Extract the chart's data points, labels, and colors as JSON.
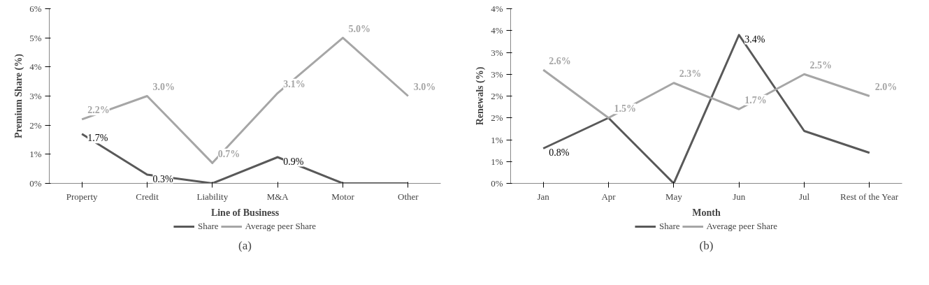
{
  "chart_data": [
    {
      "type": "line",
      "xlabel": "Line of Business",
      "ylabel": "Premium Share (%)",
      "categories": [
        "Property",
        "Credit",
        "Liability",
        "M&A",
        "Motor",
        "Other"
      ],
      "ylim": [
        0,
        6
      ],
      "yticks": [
        {
          "value": 0,
          "label": "0%"
        },
        {
          "value": 1,
          "label": "1%"
        },
        {
          "value": 2,
          "label": "2%"
        },
        {
          "value": 3,
          "label": "3%"
        },
        {
          "value": 4,
          "label": "4%"
        },
        {
          "value": 5,
          "label": "5%"
        },
        {
          "value": 6,
          "label": "6%"
        }
      ],
      "legend": "bottom",
      "grid": false,
      "annotations": [
        "(a)"
      ],
      "series": [
        {
          "name": "Share",
          "color": "#595959",
          "values": [
            1.7,
            0.3,
            0,
            0.9,
            0,
            0
          ],
          "value_labels": [
            "1.7%",
            "0.3%",
            null,
            "0.9%",
            null,
            null
          ]
        },
        {
          "name": "Average peer Share",
          "color": "#a6a6a6",
          "values": [
            2.2,
            3.0,
            0.7,
            3.1,
            5.0,
            3.0
          ],
          "value_labels": [
            "2.2%",
            "3.0%",
            "0.7%",
            "3.1%",
            "5.0%",
            "3.0%"
          ]
        }
      ]
    },
    {
      "type": "line",
      "xlabel": "Month",
      "ylabel": "Renewals (%)",
      "categories": [
        "Jan",
        "Apr",
        "May",
        "Jun",
        "Jul",
        "Rest of the Year"
      ],
      "ylim": [
        0,
        4
      ],
      "yticks": [
        {
          "value": 0,
          "label": "0%"
        },
        {
          "value": 0.5,
          "label": "1%"
        },
        {
          "value": 1,
          "label": "1%"
        },
        {
          "value": 1.5,
          "label": "2%"
        },
        {
          "value": 2,
          "label": "2%"
        },
        {
          "value": 2.5,
          "label": "3%"
        },
        {
          "value": 3,
          "label": "3%"
        },
        {
          "value": 3.5,
          "label": "4%"
        },
        {
          "value": 4,
          "label": "4%"
        }
      ],
      "legend": "bottom",
      "grid": false,
      "annotations": [
        "(b)"
      ],
      "series": [
        {
          "name": "Share",
          "color": "#595959",
          "values": [
            0.8,
            1.5,
            0,
            3.4,
            1.2,
            0.7
          ],
          "value_labels": [
            "0.8%",
            null,
            null,
            "3.4%",
            null,
            null
          ]
        },
        {
          "name": "Average peer Share",
          "color": "#a6a6a6",
          "values": [
            2.6,
            1.5,
            2.3,
            1.7,
            2.5,
            2.0
          ],
          "value_labels": [
            "2.6%",
            "1.5%",
            "2.3%",
            "1.7%",
            "2.5%",
            "2.0%"
          ]
        }
      ]
    }
  ]
}
